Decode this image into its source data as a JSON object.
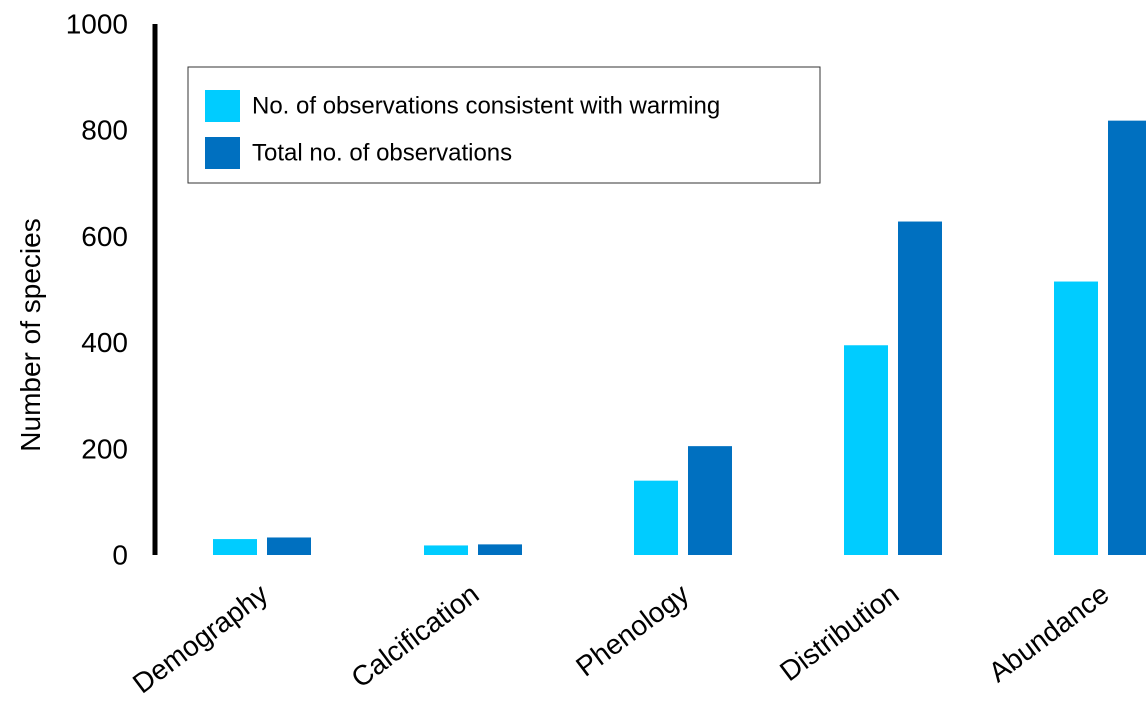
{
  "chart_data": {
    "type": "bar",
    "title": "",
    "xlabel": "",
    "ylabel": "Number of species",
    "ylim": [
      0,
      1000
    ],
    "yticks": [
      0,
      200,
      400,
      600,
      800,
      1000
    ],
    "categories": [
      "Demography",
      "Calcification",
      "Phenology",
      "Distribution",
      "Abundance"
    ],
    "series": [
      {
        "name": "No. of observations consistent with warming",
        "color": "#00CCFF",
        "values": [
          30,
          18,
          140,
          395,
          515
        ]
      },
      {
        "name": "Total no. of observations",
        "color": "#0070C0",
        "values": [
          33,
          20,
          205,
          628,
          818
        ]
      }
    ],
    "legend_position": "top-left",
    "grid": false
  }
}
